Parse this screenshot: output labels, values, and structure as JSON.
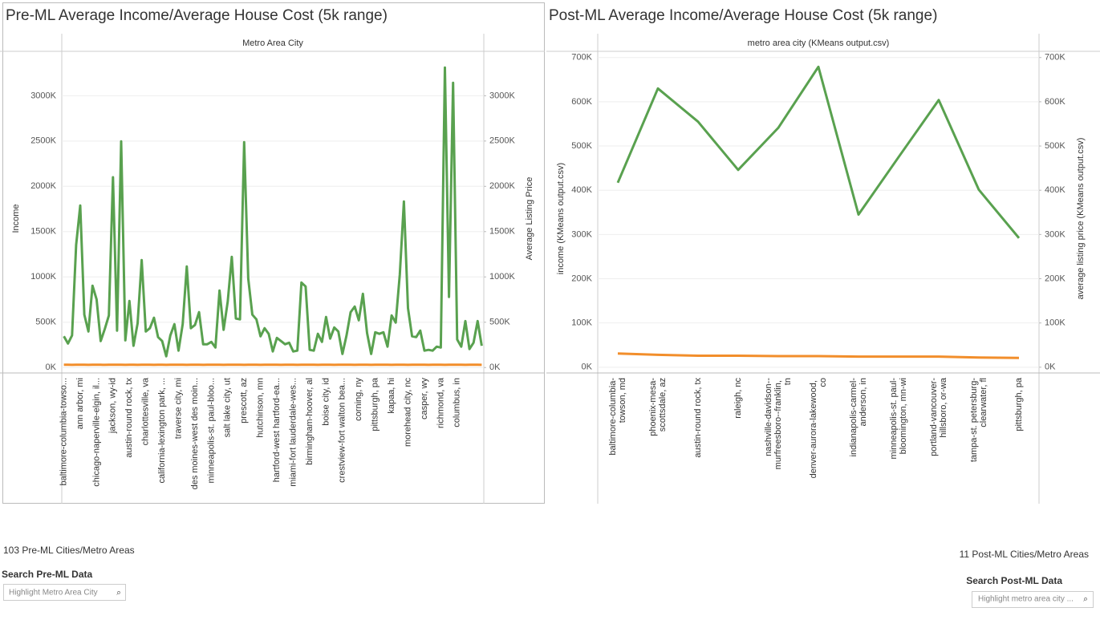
{
  "chart_data": [
    {
      "type": "line",
      "title": "Pre-ML Average Income/Average House Cost (5k range)",
      "x_label": "Metro Area City",
      "categories": [
        "baltimore-columbia-towso...",
        null,
        null,
        null,
        "ann arbor, mi",
        null,
        null,
        null,
        "chicago-naperville-elgin, il...",
        null,
        null,
        null,
        "jackson, wy-id",
        null,
        null,
        null,
        "austin-round rock, tx",
        null,
        null,
        null,
        "charlottesville, va",
        null,
        null,
        null,
        "california-lexington park, ...",
        null,
        null,
        null,
        "traverse city, mi",
        null,
        null,
        null,
        "des moines-west des moin...",
        null,
        null,
        null,
        "minneapolis-st. paul-bloo...",
        null,
        null,
        null,
        "salt lake city, ut",
        null,
        null,
        null,
        "prescott, az",
        null,
        null,
        null,
        "hutchinson, mn",
        null,
        null,
        null,
        "hartford-west hartford-ea...",
        null,
        null,
        null,
        "miami-fort lauderdale-wes...",
        null,
        null,
        null,
        "birmingham-hoover, al",
        null,
        null,
        null,
        "boise city, id",
        null,
        null,
        null,
        "crestview-fort walton bea...",
        null,
        null,
        null,
        "corning, ny",
        null,
        null,
        null,
        "pittsburgh, pa",
        null,
        null,
        null,
        "kapaa, hi",
        null,
        null,
        null,
        "morehead city, nc",
        null,
        null,
        null,
        "casper, wy",
        null,
        null,
        null,
        "richmond, va",
        null,
        null,
        null,
        "columbus, in",
        null,
        null,
        null,
        null,
        null,
        null
      ],
      "series": [
        {
          "name": "Income",
          "color": "#f28e2b",
          "values": [
            30,
            30,
            29,
            31,
            30,
            30,
            29,
            30,
            31,
            30,
            29,
            30,
            30,
            31,
            30,
            29,
            30,
            30,
            29,
            30,
            30,
            31,
            29,
            30,
            30,
            29,
            30,
            30,
            31,
            30,
            29,
            30,
            30,
            30,
            29,
            30,
            31,
            30,
            30,
            29,
            30,
            30,
            31,
            30,
            29,
            30,
            30,
            30,
            29,
            30,
            31,
            30,
            30,
            29,
            30,
            30,
            30,
            29,
            30,
            31,
            30,
            30,
            29,
            30,
            30,
            30,
            29,
            30,
            31,
            30,
            30,
            29,
            30,
            30,
            30,
            29,
            30,
            31,
            30,
            30,
            29,
            30,
            30,
            30,
            29,
            30,
            31,
            30,
            30,
            29,
            30,
            30,
            30,
            29,
            30,
            31,
            30,
            30,
            29,
            30,
            30,
            30,
            29
          ]
        },
        {
          "name": "Average Listing Price",
          "color": "#59a14f",
          "axis": "y2",
          "values": [
            345,
            265,
            354,
            1354,
            1788,
            584,
            398,
            903,
            752,
            292,
            425,
            575,
            2100,
            407,
            2496,
            300,
            735,
            240,
            487,
            1186,
            398,
            434,
            549,
            336,
            292,
            124,
            354,
            478,
            186,
            478,
            1115,
            434,
            469,
            611,
            257,
            257,
            283,
            221,
            850,
            416,
            726,
            1221,
            540,
            531,
            2487,
            982,
            584,
            531,
            345,
            434,
            372,
            177,
            327,
            292,
            257,
            274,
            177,
            186,
            938,
            894,
            195,
            186,
            372,
            283,
            558,
            319,
            442,
            398,
            150,
            354,
            611,
            673,
            522,
            814,
            381,
            150,
            389,
            372,
            389,
            230,
            575,
            496,
            1027,
            1832,
            655,
            345,
            336,
            407,
            186,
            195,
            186,
            230,
            221,
            3310,
            779,
            3142,
            310,
            230,
            513,
            204,
            274,
            513,
            240
          ]
        }
      ],
      "ylim": [
        -60,
        3490
      ],
      "yticks": [
        {
          "value": 0,
          "label": "0K"
        },
        {
          "value": 500,
          "label": "500K"
        },
        {
          "value": 1000,
          "label": "1000K"
        },
        {
          "value": 1500,
          "label": "1500K"
        },
        {
          "value": 2000,
          "label": "2000K"
        },
        {
          "value": 2500,
          "label": "2500K"
        },
        {
          "value": 3000,
          "label": "3000K"
        }
      ],
      "y2lim": [
        -60,
        3490
      ],
      "y2ticks": [
        {
          "value": 0,
          "label": "0K"
        },
        {
          "value": 500,
          "label": "500K"
        },
        {
          "value": 1000,
          "label": "1000K"
        },
        {
          "value": 1500,
          "label": "1500K"
        },
        {
          "value": 2000,
          "label": "2000K"
        },
        {
          "value": 2500,
          "label": "2500K"
        },
        {
          "value": 3000,
          "label": "3000K"
        }
      ],
      "grid": true
    },
    {
      "type": "line",
      "title": "Post-ML Average Income/Average House Cost (5k range)",
      "x_label": "metro area city (KMeans output.csv)",
      "categories": [
        "baltimore-columbia-towson, md",
        "phoenix-mesa-scottsdale, az",
        "austin-round rock, tx",
        "raleigh, nc",
        "nashville-davidson--murfreesboro--franklin, tn",
        "denver-aurora-lakewood, co",
        "indianapolis-carmel-anderson, in",
        "minneapolis-st. paul-bloomington, mn-wi",
        "portland-vancouver-hillsboro, or-wa",
        "tampa-st. petersburg-clearwater, fl",
        "pittsburgh, pa"
      ],
      "series": [
        {
          "name": "income (KMeans output.csv)",
          "color": "#f28e2b",
          "values": [
            31,
            28,
            26,
            26,
            25,
            25,
            24,
            24,
            24,
            22,
            21
          ]
        },
        {
          "name": "average listing price (KMeans output.csv)",
          "color": "#59a14f",
          "axis": "y2",
          "values": [
            417,
            630,
            555,
            446,
            541,
            679,
            345,
            475,
            604,
            401,
            292
          ]
        }
      ],
      "ylim": [
        -13,
        714
      ],
      "yticks": [
        {
          "value": 0,
          "label": "0K"
        },
        {
          "value": 100,
          "label": "100K"
        },
        {
          "value": 200,
          "label": "200K"
        },
        {
          "value": 300,
          "label": "300K"
        },
        {
          "value": 400,
          "label": "400K"
        },
        {
          "value": 500,
          "label": "500K"
        },
        {
          "value": 600,
          "label": "600K"
        },
        {
          "value": 700,
          "label": "700K"
        }
      ],
      "y2lim": [
        -13,
        714
      ],
      "y2ticks": [
        {
          "value": 0,
          "label": "0K"
        },
        {
          "value": 100,
          "label": "100K"
        },
        {
          "value": 200,
          "label": "200K"
        },
        {
          "value": 300,
          "label": "300K"
        },
        {
          "value": 400,
          "label": "400K"
        },
        {
          "value": 500,
          "label": "500K"
        },
        {
          "value": 600,
          "label": "600K"
        },
        {
          "value": 700,
          "label": "700K"
        }
      ],
      "grid": true
    }
  ],
  "controls": {
    "pre_count": "103 Pre-ML Cities/Metro Areas",
    "pre_search_label": "Search Pre-ML Data",
    "pre_search_placeholder": "Highlight Metro Area City",
    "post_count": "11 Post-ML Cities/Metro Areas",
    "post_search_label": "Search Post-ML Data",
    "post_search_placeholder": "Highlight metro area city ..."
  }
}
